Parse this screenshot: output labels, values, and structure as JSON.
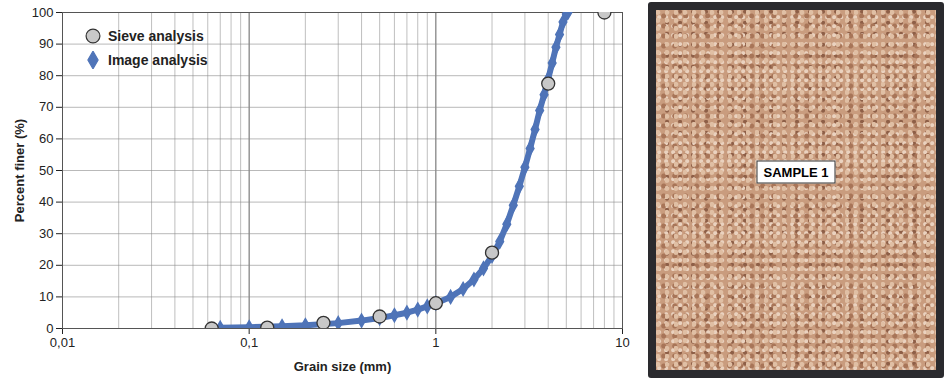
{
  "chart_data": {
    "type": "scatter",
    "xlabel": "Grain size (mm)",
    "ylabel": "Percent finer (%)",
    "log": "x",
    "grid": true,
    "legend": "upper left",
    "xlim": [
      0.01,
      10
    ],
    "xticks": [
      {
        "value": 0.01,
        "label": "0,01"
      },
      {
        "value": 0.1,
        "label": "0,1"
      },
      1,
      10
    ],
    "ylim": [
      0,
      100
    ],
    "yticks": [
      0,
      10,
      20,
      30,
      40,
      50,
      60,
      70,
      80,
      90,
      100
    ],
    "series": [
      {
        "name": "Image analysis",
        "type": "line",
        "marker": "diamond",
        "color": "#4f74b8",
        "x": [
          0.07,
          0.1,
          0.15,
          0.2,
          0.3,
          0.4,
          0.5,
          0.6,
          0.7,
          0.8,
          0.9,
          1.0,
          1.2,
          1.4,
          1.6,
          1.8,
          2.0,
          2.2,
          2.4,
          2.6,
          2.8,
          3.0,
          3.2,
          3.4,
          3.6,
          3.8,
          4.0,
          4.2,
          4.4,
          4.6,
          4.8,
          5.0,
          5.1
        ],
        "values": [
          0.2,
          0.4,
          0.7,
          1.0,
          1.7,
          2.5,
          3.3,
          4.2,
          5.0,
          6.0,
          7.0,
          8.0,
          10.0,
          12.5,
          15.5,
          19,
          23,
          27.5,
          33,
          39,
          45,
          51,
          57,
          63,
          69,
          74,
          79,
          84,
          89,
          93,
          97,
          99.5,
          100
        ]
      },
      {
        "name": "Sieve analysis",
        "type": "scatter",
        "marker": "circle",
        "color": "#c8c8c8",
        "x": [
          0.063,
          0.125,
          0.25,
          0.5,
          1,
          2,
          4,
          8
        ],
        "values": [
          0,
          0.3,
          1.8,
          3.8,
          8,
          24,
          77.5,
          100
        ]
      }
    ]
  },
  "photo": {
    "label": "SAMPLE 1"
  }
}
